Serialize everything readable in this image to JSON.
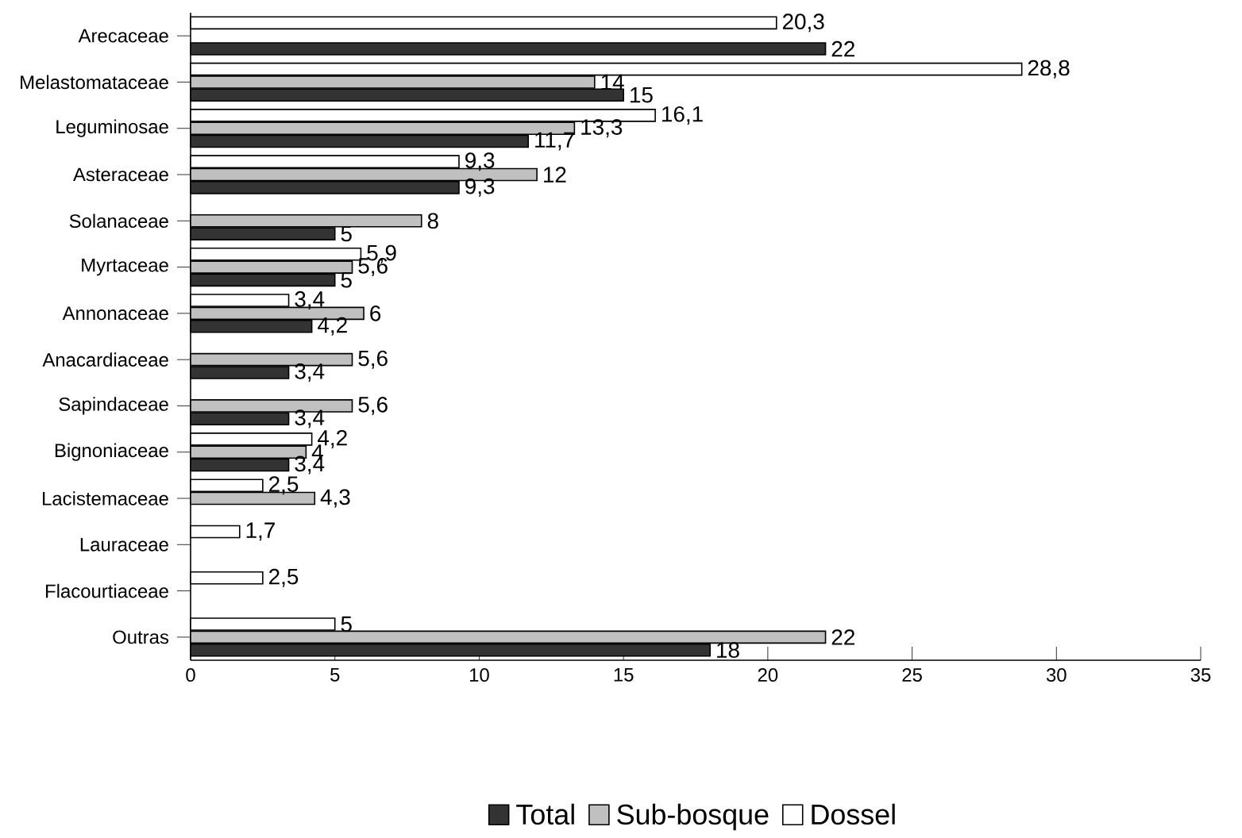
{
  "chart_data": {
    "type": "bar",
    "orientation": "horizontal",
    "categories": [
      "Arecaceae",
      "Melastomataceae",
      "Leguminosae",
      "Asteraceae",
      "Solanaceae",
      "Myrtaceae",
      "Annonaceae",
      "Anacardiaceae",
      "Sapindaceae",
      "Bignoniaceae",
      "Lacistemaceae",
      "Lauraceae",
      "Flacourtiaceae",
      "Outras"
    ],
    "series": [
      {
        "name": "Total",
        "color": "#333333",
        "values": [
          22,
          15,
          11.7,
          9.3,
          5,
          5,
          4.2,
          3.4,
          3.4,
          3.4,
          null,
          null,
          null,
          18
        ],
        "value_labels": [
          "22",
          "15",
          "11,7",
          "9,3",
          "5",
          "5",
          "4,2",
          "3,4",
          "3,4",
          "3,4",
          null,
          null,
          null,
          "18"
        ]
      },
      {
        "name": "Sub-bosque",
        "color": "#c0c0c0",
        "values": [
          null,
          14,
          13.3,
          12,
          8,
          5.6,
          6,
          5.6,
          5.6,
          4,
          4.3,
          null,
          null,
          22
        ],
        "value_labels": [
          null,
          "14",
          "13,3",
          "12",
          "8",
          "5,6",
          "6",
          "5,6",
          "5,6",
          "4",
          "4,3",
          null,
          null,
          "22"
        ]
      },
      {
        "name": "Dossel",
        "color": "#ffffff",
        "values": [
          20.3,
          28.8,
          16.1,
          9.3,
          null,
          5.9,
          3.4,
          null,
          null,
          4.2,
          2.5,
          1.7,
          2.5,
          5
        ],
        "value_labels": [
          "20,3",
          "28,8",
          "16,1",
          "9,3",
          null,
          "5,9",
          "3,4",
          null,
          null,
          "4,2",
          "2,5",
          "1,7",
          "2,5",
          "5"
        ]
      }
    ],
    "xlim": [
      0,
      35
    ],
    "xticks": [
      0,
      5,
      10,
      15,
      20,
      25,
      30,
      35
    ],
    "legend": "bottom"
  }
}
